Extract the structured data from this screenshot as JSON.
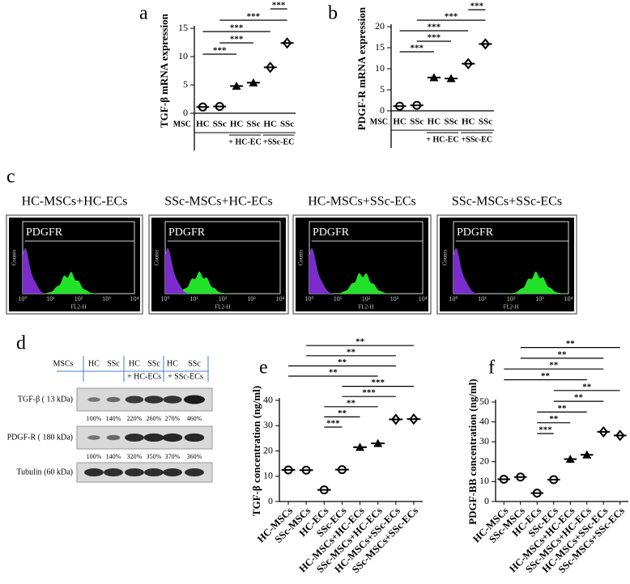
{
  "chart_data": [
    {
      "type": "dot",
      "panel": "a",
      "ylabel": "TGF-β mRNA expression",
      "row_label": "MSC",
      "categories": [
        "HC",
        "SSc",
        "HC",
        "SSc",
        "HC",
        "SSc"
      ],
      "group_labels": [
        "+ HC-EC",
        "+SSc-EC"
      ],
      "values": [
        1.1,
        1.2,
        4.8,
        5.4,
        8.1,
        12.4
      ],
      "markers": [
        "circle",
        "circle",
        "triangle",
        "triangle",
        "diamond",
        "diamond"
      ],
      "color": "#000000",
      "ylim": [
        0,
        15
      ],
      "yticks": [
        0,
        5,
        10,
        15
      ],
      "significance": [
        "***",
        "***",
        "***",
        "***",
        "***"
      ]
    },
    {
      "type": "dot",
      "panel": "b",
      "ylabel": "PDGF-R mRNA expression",
      "row_label": "MSC",
      "categories": [
        "HC",
        "SSc",
        "HC",
        "SSc",
        "HC",
        "SSc"
      ],
      "group_labels": [
        "+ HC-EC",
        "+SSc-EC"
      ],
      "values": [
        1.1,
        1.3,
        7.9,
        7.7,
        11.2,
        15.9
      ],
      "markers": [
        "circle",
        "circle",
        "triangle",
        "triangle",
        "diamond",
        "diamond"
      ],
      "color": "#000000",
      "ylim": [
        0,
        20
      ],
      "yticks": [
        0,
        5,
        10,
        15,
        20
      ],
      "significance": [
        "***",
        "***",
        "***",
        "***",
        "***"
      ]
    },
    {
      "type": "dot",
      "panel": "e",
      "ylabel": "TGF-β concentration (ng/ml)",
      "categories": [
        "HC-MSCs",
        "SSc-MSCs",
        "HC-ECs",
        "SSc-ECs",
        "HC-MSCs+HC-ECs",
        "SSc-MSCs+HC-ECs",
        "HC-MSCs+SSc-ECs",
        "SSc-MSCs+SSc-ECs"
      ],
      "values": [
        12.5,
        12.4,
        4.6,
        12.6,
        21.5,
        23.0,
        32.5,
        32.6
      ],
      "markers": [
        "circle",
        "circle",
        "circle",
        "circle",
        "triangle",
        "triangle",
        "diamond",
        "diamond"
      ],
      "color": "#000000",
      "ylim": [
        0,
        40
      ],
      "yticks": [
        0,
        10,
        20,
        30,
        40
      ],
      "significance": [
        "***",
        "**",
        "**",
        "***",
        "***",
        "**",
        "**",
        "**",
        "**"
      ]
    },
    {
      "type": "dot",
      "panel": "f",
      "ylabel": "PDGF-BB concentration (ng/ml)",
      "categories": [
        "HC-MSCs",
        "SSc-MSCs",
        "HC-ECs",
        "SSc-ECs",
        "HC-MSCs+HC-ECs",
        "SSc-MSCs+HC-ECs",
        "HC-MSCs+SSc-ECs",
        "SSc-MSCs+SSc-ECs"
      ],
      "values": [
        11.2,
        12.3,
        4.2,
        11.0,
        21.3,
        23.5,
        35.0,
        33.2
      ],
      "markers": [
        "circle",
        "circle",
        "circle",
        "circle",
        "triangle",
        "triangle",
        "diamond",
        "diamond"
      ],
      "color": "#000000",
      "ylim": [
        0,
        50
      ],
      "yticks": [
        0,
        10,
        20,
        30,
        40,
        50
      ],
      "significance": [
        "***",
        "**",
        "**",
        "**",
        "**",
        "**",
        "**",
        "**",
        "**"
      ]
    }
  ],
  "flow": {
    "panel": "c",
    "titles": [
      "HC-MSCs+HC-ECs",
      "SSc-MSCs+HC-ECs",
      "HC-MSCs+SSc-ECs",
      "SSc-MSCs+SSc-ECs"
    ],
    "marker_label": "PDGFR",
    "xlabel": "FL2-H",
    "ylabel": "Counts",
    "xticks": [
      "10⁰",
      "10¹",
      "10²",
      "10³",
      "10⁴"
    ]
  },
  "blot": {
    "panel": "d",
    "header": [
      "MSCs",
      "HC",
      "SSc",
      "HC",
      "SSc",
      "HC",
      "SSc"
    ],
    "groups": [
      "+ HC-ECs",
      "+ SSc-ECs"
    ],
    "rows": [
      {
        "label": "TGF-β ( 13 kDa)",
        "percents": [
          "100%",
          "140%",
          "220%",
          "260%",
          "270%",
          "460%"
        ]
      },
      {
        "label": "PDGF-R ( 180 kDa)",
        "percents": [
          "100%",
          "140%",
          "320%",
          "350%",
          "370%",
          "360%"
        ]
      },
      {
        "label": "Tubulin (60 kDa)"
      }
    ]
  }
}
